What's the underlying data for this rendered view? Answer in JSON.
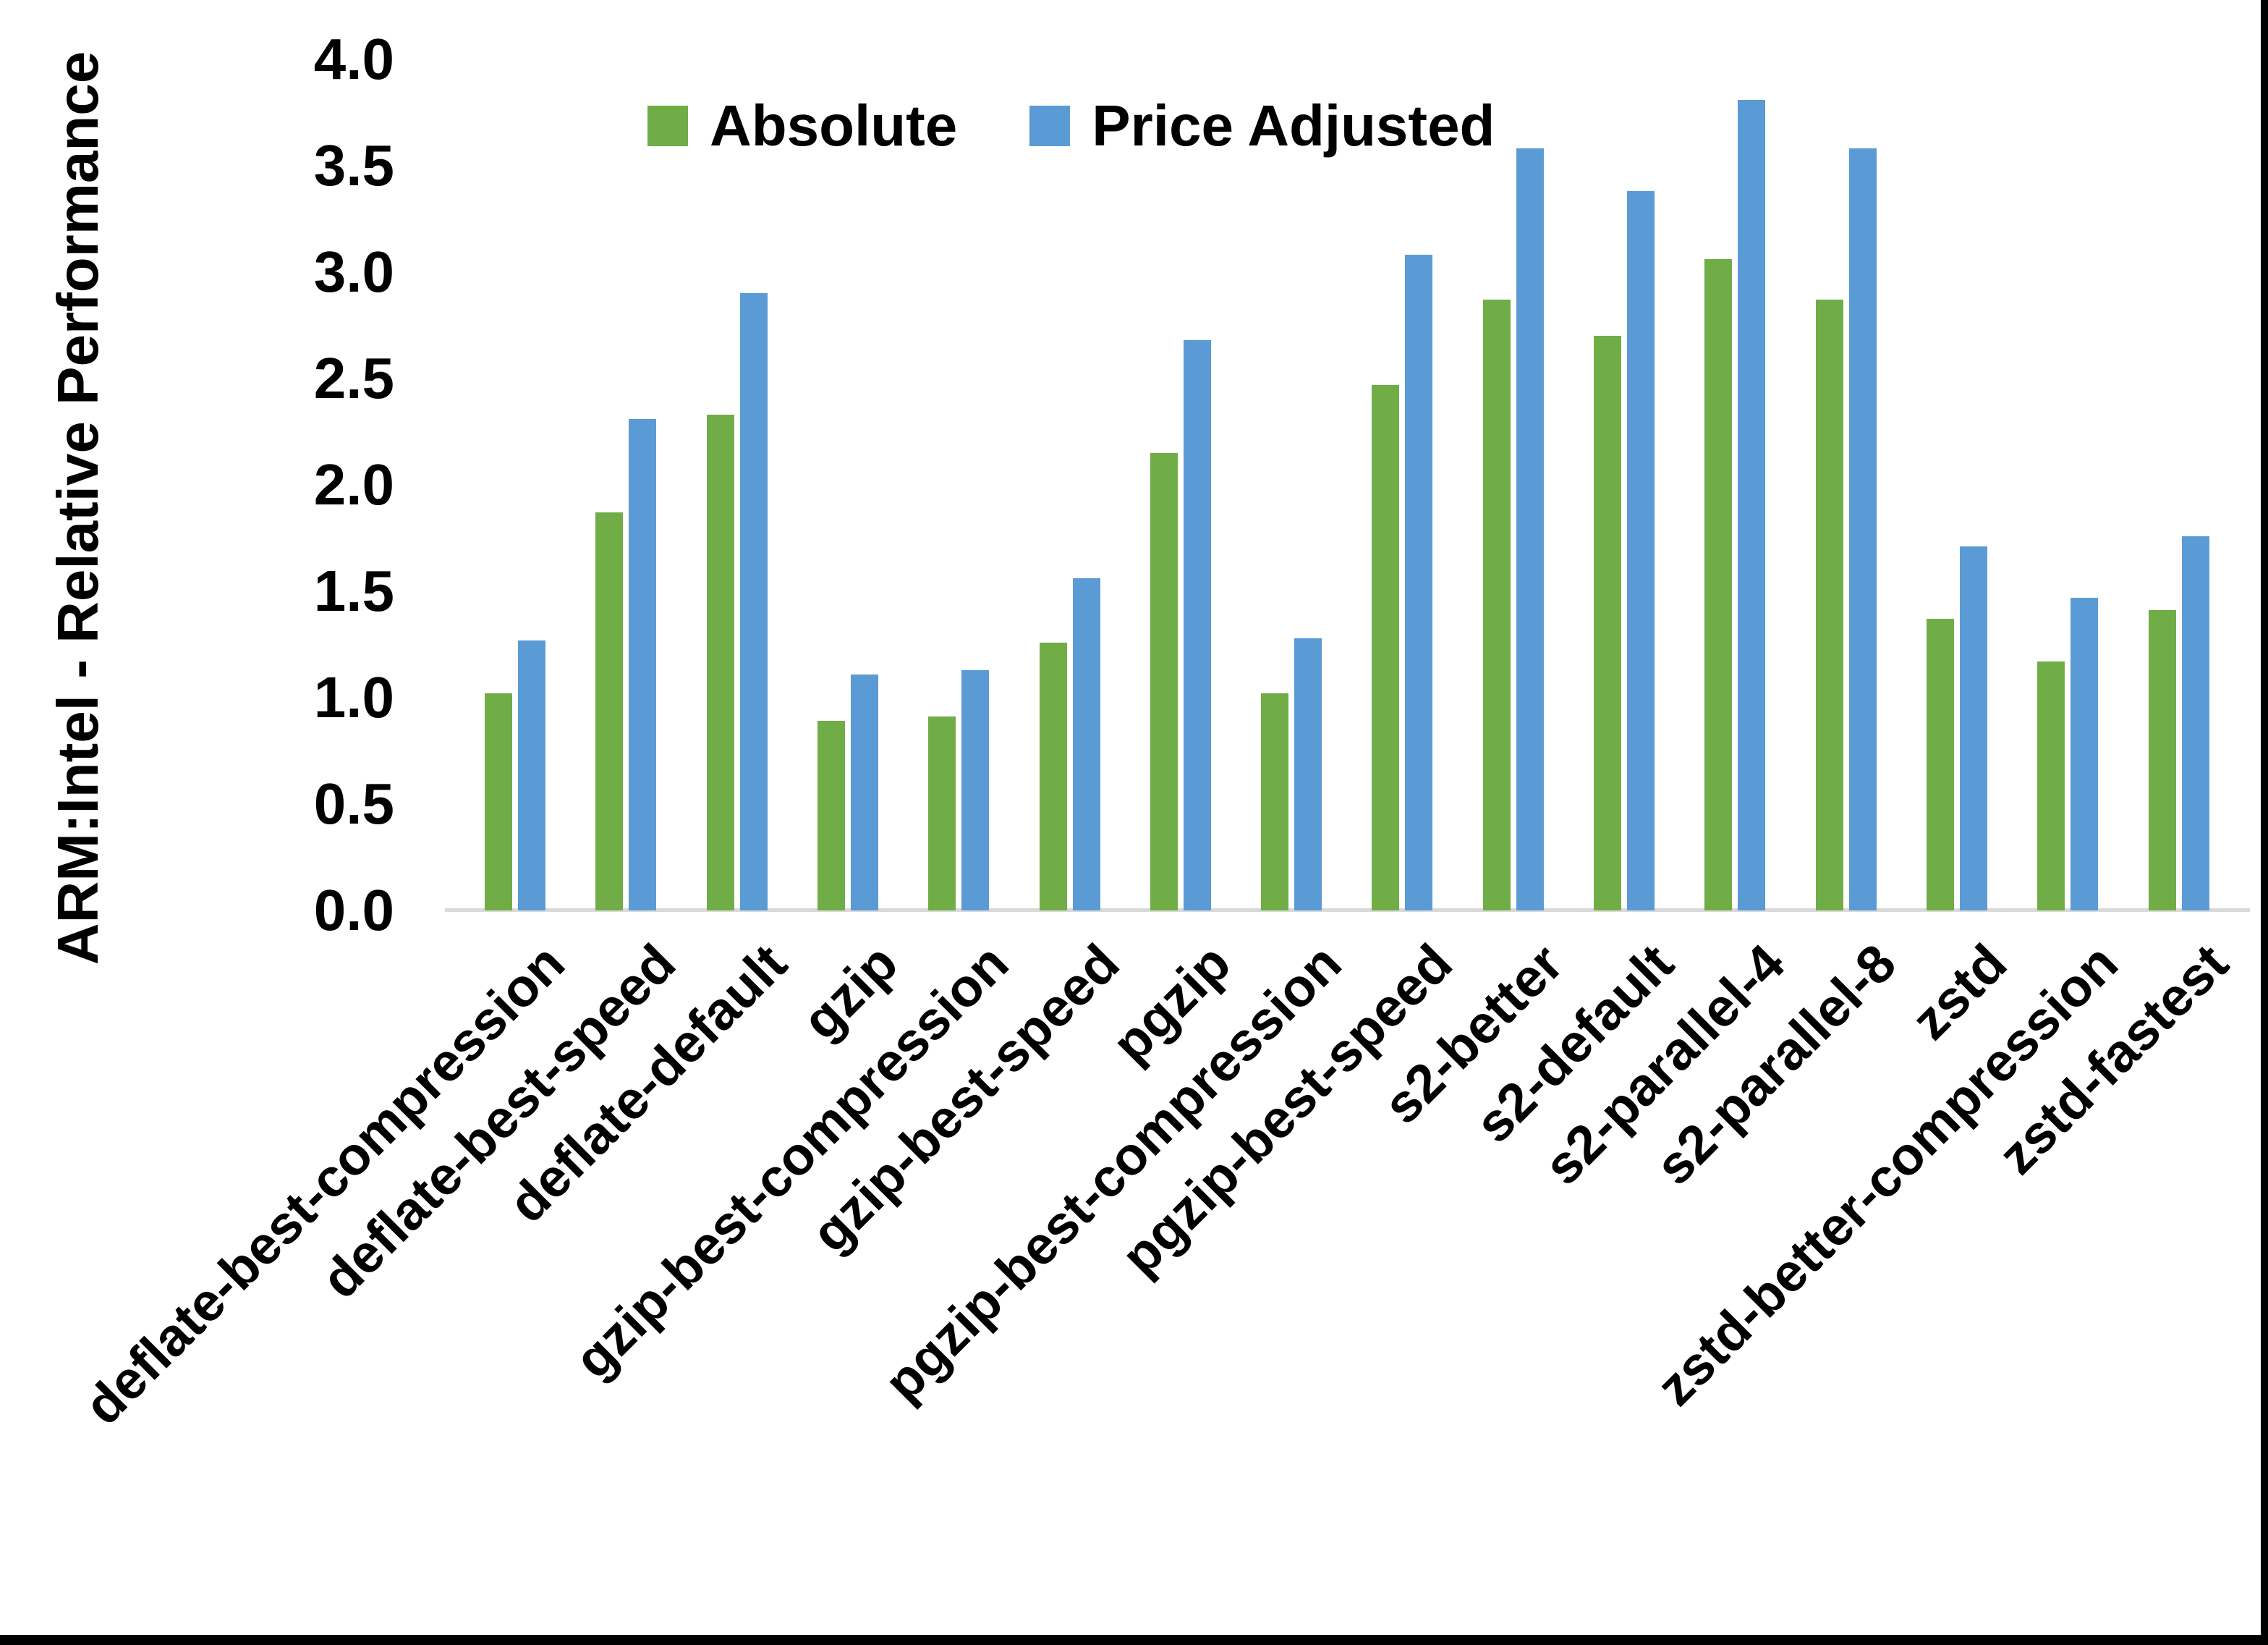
{
  "chart_data": {
    "type": "bar",
    "title": "",
    "xlabel": "",
    "ylabel": "ARM:Intel - Relative Performance",
    "ylim": [
      0.0,
      4.0
    ],
    "ytick_step": 0.5,
    "ytick_labels": [
      "0.0",
      "0.5",
      "1.0",
      "1.5",
      "2.0",
      "2.5",
      "3.0",
      "3.5",
      "4.0"
    ],
    "grid": false,
    "legend_position": "top-center-inside",
    "categories": [
      "deflate-best-compression",
      "deflate-best-speed",
      "deflate-default",
      "gzip",
      "gzip-best-compression",
      "gzip-best-speed",
      "pgzip",
      "pgzip-best-compression",
      "pgzip-best-speed",
      "s2-better",
      "s2-default",
      "s2-parallel-4",
      "s2-parallel-8",
      "zstd",
      "zstd-better-compression",
      "zstd-fastest"
    ],
    "series": [
      {
        "name": "Absolute",
        "color": "#70AD47",
        "values": [
          1.02,
          1.87,
          2.33,
          0.89,
          0.91,
          1.26,
          2.15,
          1.02,
          2.47,
          2.87,
          2.7,
          3.06,
          2.87,
          1.37,
          1.17,
          1.41
        ]
      },
      {
        "name": "Price Adjusted",
        "color": "#5B9BD5",
        "values": [
          1.27,
          2.31,
          2.9,
          1.11,
          1.13,
          1.56,
          2.68,
          1.28,
          3.08,
          3.58,
          3.38,
          3.81,
          3.58,
          1.71,
          1.47,
          1.76
        ]
      }
    ],
    "colors": {
      "axis_line": "#D9D9D9",
      "text": "#000000",
      "frame_border": "#000000",
      "background": "#FFFFFF"
    }
  }
}
